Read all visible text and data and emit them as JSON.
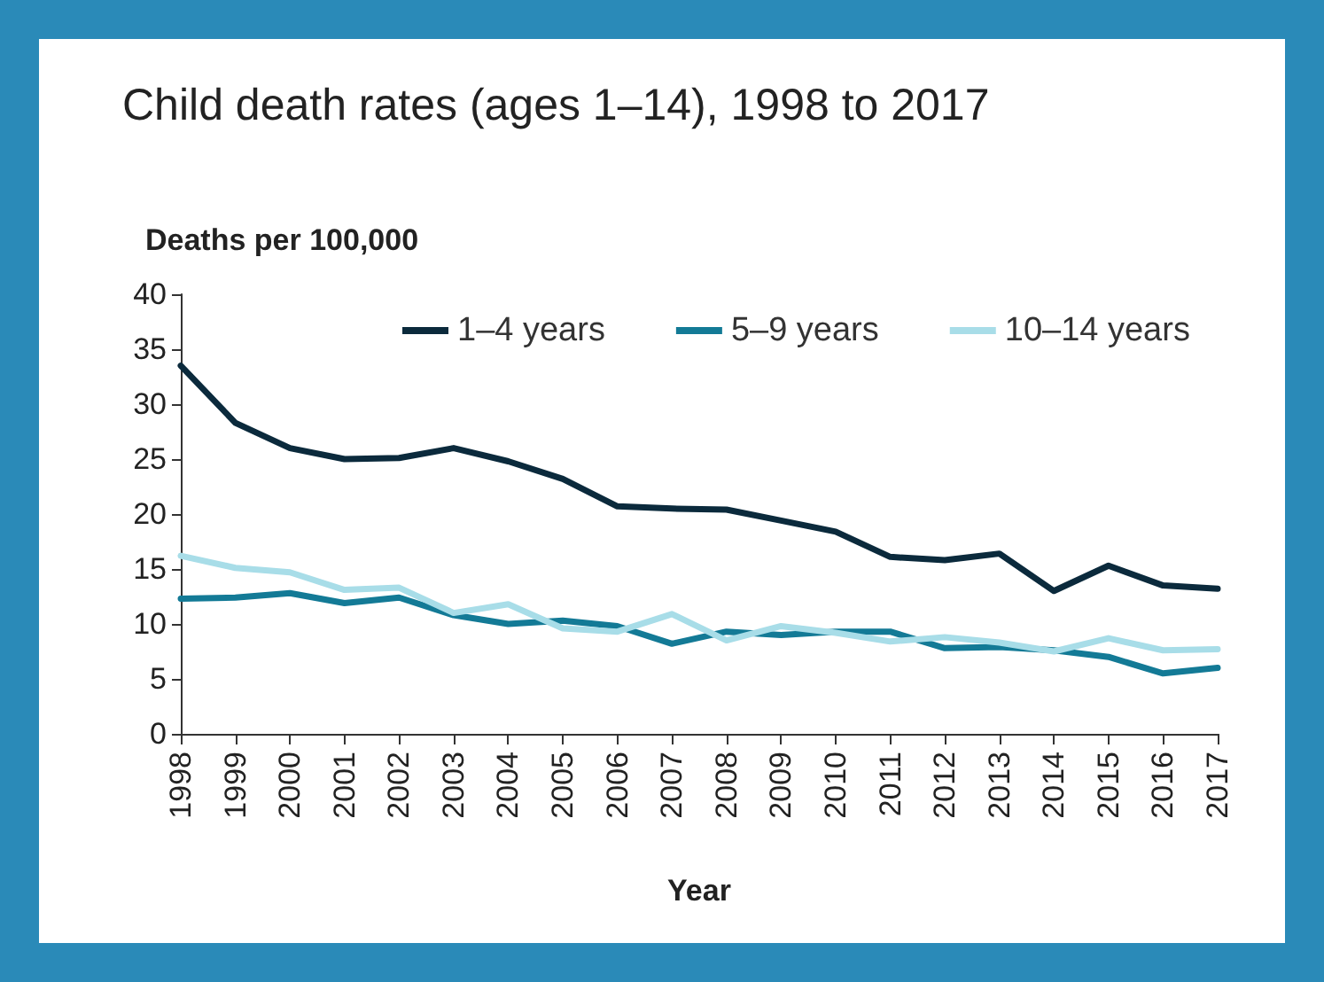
{
  "chart_data": {
    "type": "line",
    "title": "Child death rates (ages 1–14), 1998 to 2017",
    "ylabel": "Deaths per 100,000",
    "xlabel": "Year",
    "categories": [
      "1998",
      "1999",
      "2000",
      "2001",
      "2002",
      "2003",
      "2004",
      "2005",
      "2006",
      "2007",
      "2008",
      "2009",
      "2010",
      "2011",
      "2012",
      "2013",
      "2014",
      "2015",
      "2016",
      "2017"
    ],
    "series": [
      {
        "name": "1–4 years",
        "color": "#0b2a3c",
        "values": [
          33.5,
          28.3,
          26.0,
          25.0,
          25.1,
          26.0,
          24.8,
          23.2,
          20.7,
          20.5,
          20.4,
          19.4,
          18.4,
          16.1,
          15.8,
          16.4,
          13.0,
          15.3,
          13.5,
          13.2
        ]
      },
      {
        "name": "5–9 years",
        "color": "#137a96",
        "values": [
          12.3,
          12.4,
          12.8,
          11.9,
          12.4,
          10.8,
          10.0,
          10.3,
          9.8,
          8.2,
          9.3,
          9.0,
          9.3,
          9.3,
          7.8,
          7.9,
          7.6,
          7.0,
          5.5,
          6.0
        ]
      },
      {
        "name": "10–14 years",
        "color": "#a8dde8",
        "values": [
          16.2,
          15.1,
          14.7,
          13.1,
          13.3,
          11.0,
          11.8,
          9.6,
          9.3,
          10.9,
          8.5,
          9.8,
          9.2,
          8.4,
          8.8,
          8.3,
          7.5,
          8.7,
          7.6,
          7.7
        ]
      }
    ],
    "ylim": [
      0,
      40
    ],
    "yticks": [
      0,
      5,
      10,
      15,
      20,
      25,
      30,
      35,
      40
    ],
    "grid": false,
    "legend": "top",
    "marker": "none",
    "line_style": "solid"
  }
}
